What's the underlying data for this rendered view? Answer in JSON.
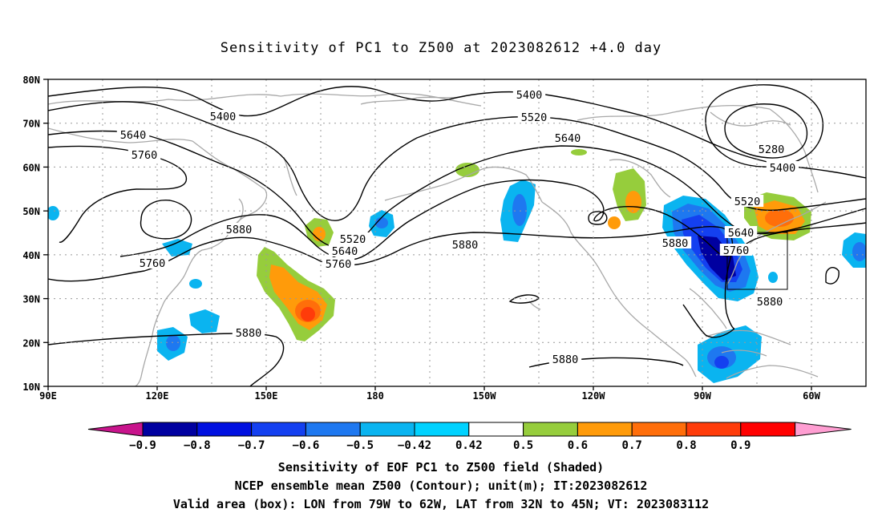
{
  "title": "Sensitivity of PC1 to Z500 at 2023082612 +4.0 day",
  "map": {
    "lat_labels": [
      "80N",
      "70N",
      "60N",
      "50N",
      "40N",
      "30N",
      "20N",
      "10N"
    ],
    "lon_labels": [
      "90E",
      "120E",
      "150E",
      "180",
      "150W",
      "120W",
      "90W",
      "60W"
    ],
    "extent": {
      "lon_min": 90,
      "lon_max": 315,
      "lat_min": 10,
      "lat_max": 80
    },
    "contour_labels": [
      "5400",
      "5400",
      "5520",
      "5640",
      "5640",
      "5760",
      "5280",
      "5400",
      "5520",
      "5640",
      "5760",
      "5880",
      "5520",
      "5640",
      "5760",
      "5880",
      "5880",
      "5760",
      "5880",
      "5880",
      "5880"
    ],
    "valid_box": {
      "lon_from": "79W",
      "lon_to": "62W",
      "lat_from": "32N",
      "lat_to": "45N"
    }
  },
  "colorbar": {
    "labels": [
      "-0.9",
      "-0.8",
      "-0.7",
      "-0.6",
      "-0.5",
      "-0.42",
      "0.42",
      "0.5",
      "0.6",
      "0.7",
      "0.8",
      "0.9"
    ],
    "colors": [
      "#0000a0",
      "#0010e0",
      "#1440f0",
      "#1e78f0",
      "#0ab4f0",
      "#00d2ff",
      "#ffffff",
      "#96cd3c",
      "#ff9b0a",
      "#ff6e0a",
      "#ff3c0a",
      "#ff0000"
    ],
    "end_low_color": "#c8148c",
    "end_high_color": "#ff9ed2"
  },
  "captions": [
    "Sensitivity of EOF PC1 to Z500 field (Shaded)",
    "NCEP ensemble mean Z500 (Contour); unit(m); IT:2023082612",
    "Valid area (box): LON from 79W to 62W, LAT from 32N to 45N; VT: 2023083112"
  ]
}
